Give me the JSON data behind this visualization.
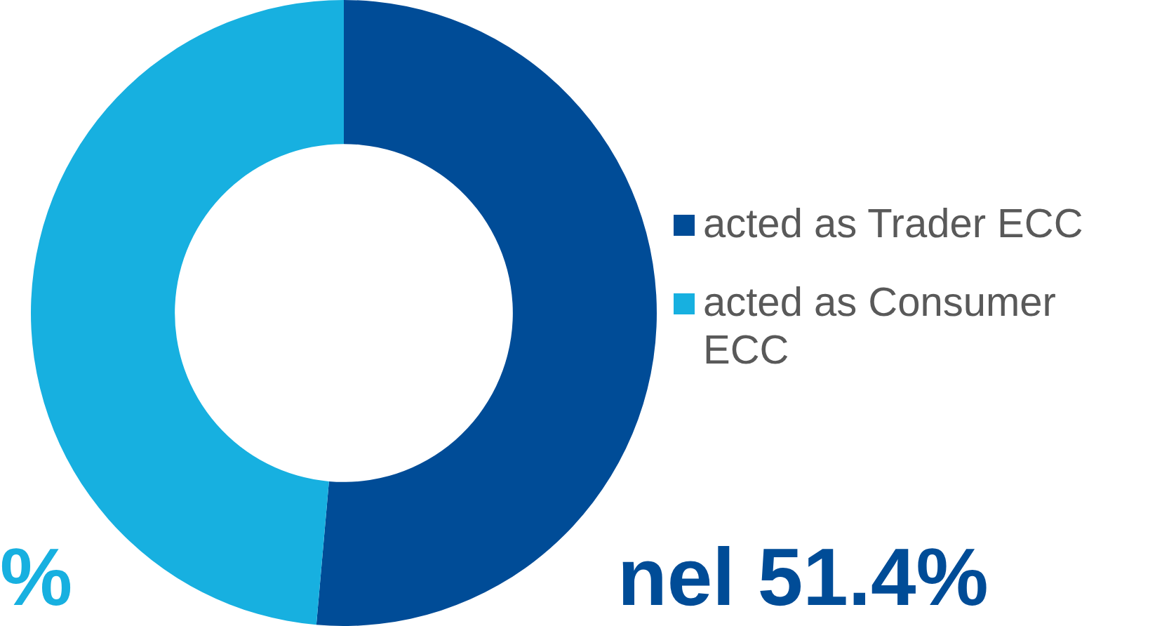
{
  "chart_data": {
    "type": "donut",
    "categories": [
      "acted as Trader ECC",
      "acted as Consumer ECC"
    ],
    "values": [
      51.4,
      48.6
    ],
    "colors": [
      "#004c97",
      "#17b0e0"
    ],
    "legend": "right",
    "annotations": [
      "%",
      "nel 51.4%"
    ]
  }
}
